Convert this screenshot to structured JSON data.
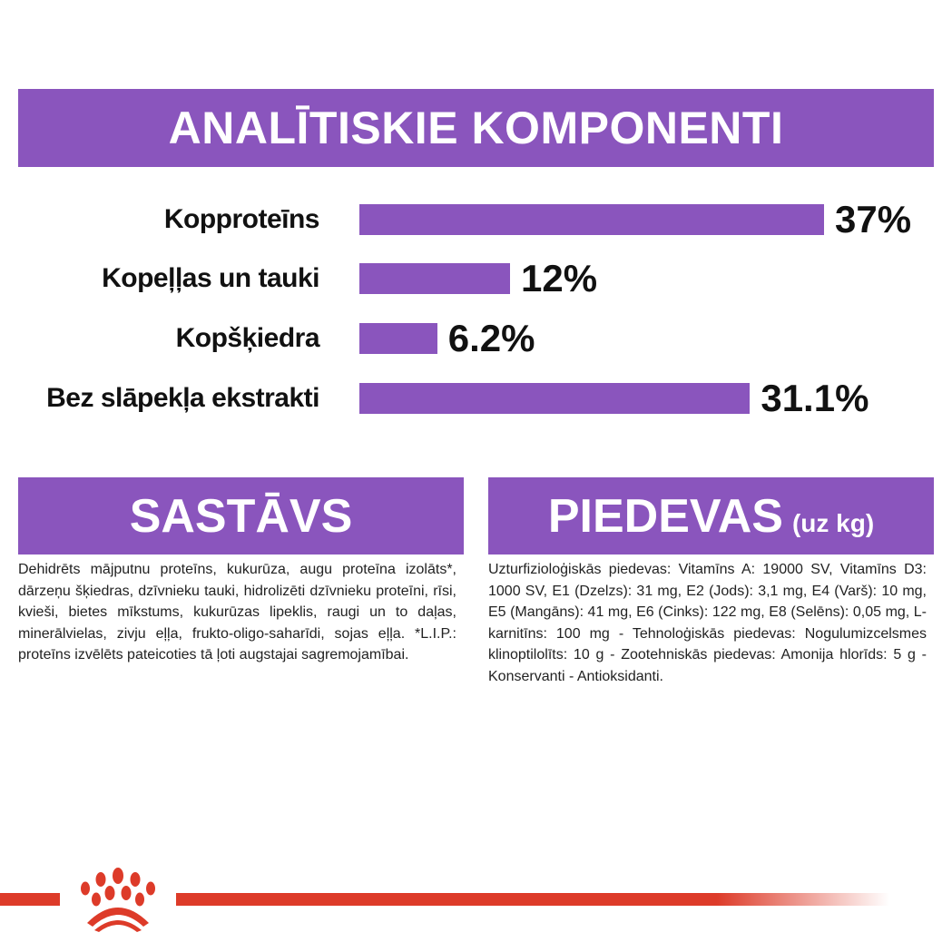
{
  "header": {
    "title": "ANALĪTISKIE KOMPONENTI"
  },
  "chart_data": {
    "type": "bar",
    "orientation": "horizontal",
    "categories": [
      "Kopproteīns",
      "Kopeļļas un tauki",
      "Kopšķiedra",
      "Bez slāpekļa ekstrakti"
    ],
    "values": [
      37,
      12,
      6.2,
      31.1
    ],
    "value_labels": [
      "37%",
      "12%",
      "6.2%",
      "31.1%"
    ],
    "xlim": [
      0,
      37
    ],
    "color": "#8a55bd"
  },
  "composition": {
    "title": "SASTĀVS",
    "text": "Dehidrēts mājputnu proteīns, kukurūza, augu proteīna izolāts*, dārzeņu šķiedras, dzīvnieku tauki, hidrolizēti dzīvnieku proteīni, rīsi, kvieši, bietes mīkstums, kukurūzas lipeklis, raugi un to daļas, minerālvielas, zivju eļļa, frukto-oligo-saharīdi, sojas eļļa. *L.I.P.: proteīns izvēlēts pateicoties tā ļoti augstajai sagremojamībai."
  },
  "additives": {
    "title": "PIEDEVAS",
    "unit": "(uz kg)",
    "text": "Uzturfizioloģiskās piedevas: Vitamīns A: 19000 SV, Vitamīns D3: 1000 SV, E1 (Dzelzs): 31 mg, E2 (Jods): 3,1 mg, E4 (Varš): 10 mg, E5 (Mangāns): 41 mg, E6 (Cinks): 122 mg, E8 (Selēns): 0,05 mg, L-karnitīns: 100 mg - Tehnoloģiskās piedevas: Nogulumizcelsmes klinoptilolīts: 10 g - Zootehniskās piedevas: Amonija hlorīds: 5 g - Konservanti - Antioksidanti."
  },
  "brand": {
    "accent": "#8a55bd",
    "red": "#dd3b29",
    "logo": "crown-paw-icon"
  }
}
